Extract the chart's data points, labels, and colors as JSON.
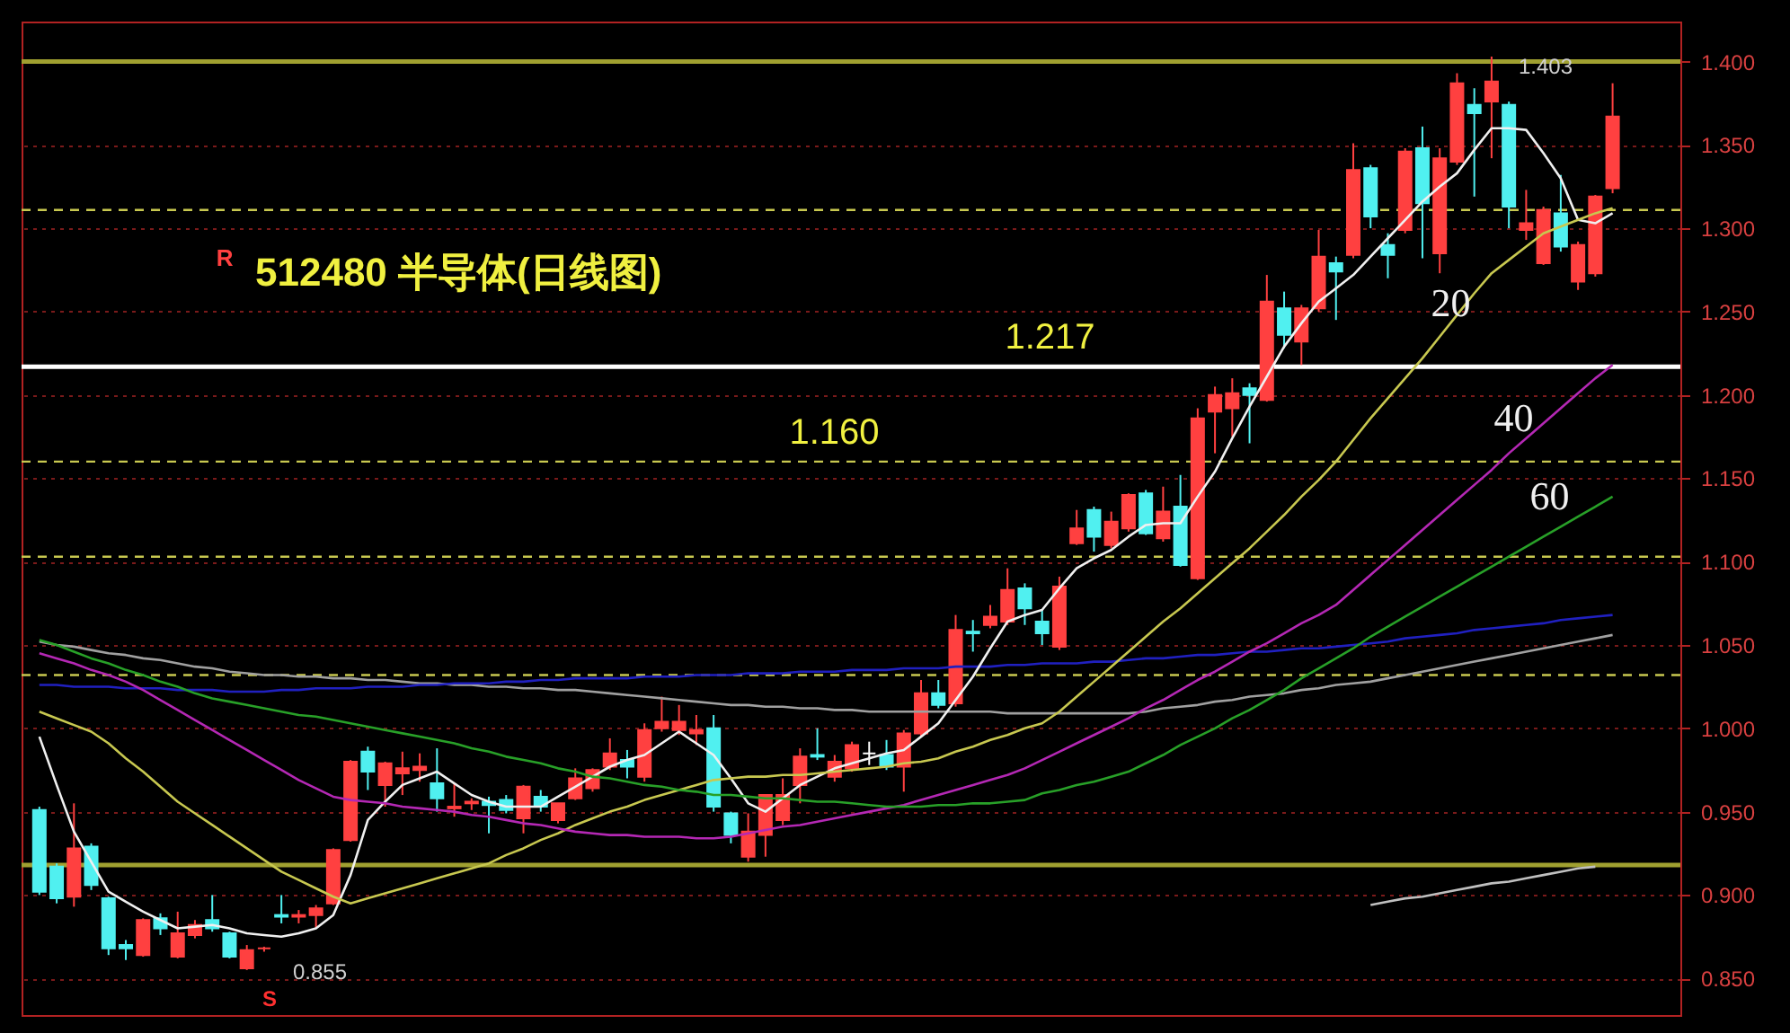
{
  "chart_data": {
    "type": "candlestick",
    "title": "512480 半导体(日线图)",
    "categories": [
      null,
      null,
      null,
      null,
      null,
      null,
      null,
      null,
      null,
      null,
      null,
      null,
      null,
      null,
      null,
      null,
      null,
      null,
      null,
      null,
      null,
      null,
      null,
      null,
      null,
      null,
      null,
      null,
      null,
      null,
      null,
      null,
      null,
      null,
      null,
      null,
      null,
      null,
      null,
      null,
      null,
      null,
      null,
      null,
      null,
      null,
      null,
      null,
      null,
      null,
      null,
      null,
      null,
      null,
      null,
      null,
      null,
      null,
      null,
      null,
      null,
      null,
      null,
      null,
      null,
      null,
      null,
      null,
      null,
      null,
      null,
      null,
      null,
      null,
      null,
      null,
      null,
      null,
      null,
      null,
      null,
      null,
      null,
      null,
      null,
      null,
      null,
      null,
      null,
      null,
      null,
      null
    ],
    "ohlc": [
      [
        0.951,
        0.953,
        0.9,
        0.902
      ],
      [
        0.917,
        0.919,
        0.895,
        0.898
      ],
      [
        0.899,
        0.955,
        0.893,
        0.928
      ],
      [
        0.929,
        0.931,
        0.903,
        0.906
      ],
      [
        0.898,
        0.899,
        0.864,
        0.868
      ],
      [
        0.87,
        0.873,
        0.861,
        0.868
      ],
      [
        0.864,
        0.886,
        0.863,
        0.885
      ],
      [
        0.886,
        0.889,
        0.876,
        0.88
      ],
      [
        0.863,
        0.89,
        0.862,
        0.877
      ],
      [
        0.876,
        0.885,
        0.874,
        0.882
      ],
      [
        0.885,
        0.9,
        0.878,
        0.88
      ],
      [
        0.877,
        0.878,
        0.862,
        0.863
      ],
      [
        0.856,
        0.87,
        0.855,
        0.867
      ],
      [
        0.868,
        0.869,
        0.866,
        0.868
      ],
      [
        0.888,
        0.9,
        0.883,
        0.887
      ],
      [
        0.887,
        0.891,
        0.883,
        0.888
      ],
      [
        0.888,
        0.894,
        0.88,
        0.892
      ],
      [
        0.895,
        0.928,
        0.894,
        0.927
      ],
      [
        0.933,
        0.981,
        0.932,
        0.98
      ],
      [
        0.986,
        0.989,
        0.963,
        0.974
      ],
      [
        0.966,
        0.98,
        0.953,
        0.979
      ],
      [
        0.973,
        0.986,
        0.96,
        0.976
      ],
      [
        0.975,
        0.985,
        0.968,
        0.977
      ],
      [
        0.967,
        0.988,
        0.95,
        0.958
      ],
      [
        0.952,
        0.967,
        0.947,
        0.953
      ],
      [
        0.955,
        0.958,
        0.951,
        0.956
      ],
      [
        0.956,
        0.959,
        0.937,
        0.954
      ],
      [
        0.957,
        0.96,
        0.949,
        0.951
      ],
      [
        0.946,
        0.966,
        0.937,
        0.965
      ],
      [
        0.959,
        0.963,
        0.95,
        0.953
      ],
      [
        0.945,
        0.955,
        0.943,
        0.955
      ],
      [
        0.958,
        0.976,
        0.957,
        0.97
      ],
      [
        0.964,
        0.976,
        0.962,
        0.975
      ],
      [
        0.977,
        0.994,
        0.975,
        0.985
      ],
      [
        0.981,
        0.987,
        0.97,
        0.977
      ],
      [
        0.971,
        1.003,
        0.968,
        0.999
      ],
      [
        1.0,
        1.019,
        0.998,
        1.004
      ],
      [
        0.999,
        1.014,
        0.996,
        1.004
      ],
      [
        0.997,
        1.008,
        0.99,
        0.999
      ],
      [
        1.0,
        1.008,
        0.95,
        0.953
      ],
      [
        0.949,
        0.95,
        0.931,
        0.936
      ],
      [
        0.923,
        0.949,
        0.92,
        0.938
      ],
      [
        0.936,
        0.96,
        0.923,
        0.96
      ],
      [
        0.945,
        0.97,
        0.942,
        0.96
      ],
      [
        0.966,
        0.988,
        0.955,
        0.983
      ],
      [
        0.984,
        1.0,
        0.981,
        0.983
      ],
      [
        0.971,
        0.984,
        0.968,
        0.98
      ],
      [
        0.976,
        0.992,
        0.974,
        0.99
      ],
      [
        0.985,
        0.992,
        0.978,
        0.985
      ],
      [
        0.984,
        0.993,
        0.975,
        0.977
      ],
      [
        0.977,
        0.999,
        0.962,
        0.997
      ],
      [
        0.997,
        1.029,
        0.995,
        1.021
      ],
      [
        1.021,
        1.029,
        1.012,
        1.014
      ],
      [
        1.015,
        1.068,
        1.013,
        1.059
      ],
      [
        1.058,
        1.065,
        1.046,
        1.057
      ],
      [
        1.062,
        1.074,
        1.06,
        1.067
      ],
      [
        1.064,
        1.096,
        1.062,
        1.083
      ],
      [
        1.084,
        1.087,
        1.062,
        1.072
      ],
      [
        1.064,
        1.071,
        1.05,
        1.057
      ],
      [
        1.049,
        1.091,
        1.047,
        1.085
      ],
      [
        1.111,
        1.131,
        1.11,
        1.12
      ],
      [
        1.131,
        1.133,
        1.106,
        1.115
      ],
      [
        1.11,
        1.13,
        1.108,
        1.124
      ],
      [
        1.12,
        1.141,
        1.118,
        1.14
      ],
      [
        1.141,
        1.143,
        1.116,
        1.117
      ],
      [
        1.114,
        1.145,
        1.112,
        1.13
      ],
      [
        1.133,
        1.152,
        1.097,
        1.098
      ],
      [
        1.09,
        1.192,
        1.089,
        1.186
      ],
      [
        1.19,
        1.205,
        1.165,
        1.2
      ],
      [
        1.192,
        1.21,
        1.175,
        1.201
      ],
      [
        1.204,
        1.207,
        1.171,
        1.2
      ],
      [
        1.197,
        1.272,
        1.196,
        1.256
      ],
      [
        1.252,
        1.262,
        1.228,
        1.236
      ],
      [
        1.232,
        1.254,
        1.218,
        1.252
      ],
      [
        1.252,
        1.299,
        1.25,
        1.283
      ],
      [
        1.279,
        1.283,
        1.245,
        1.274
      ],
      [
        1.284,
        1.351,
        1.282,
        1.335
      ],
      [
        1.336,
        1.338,
        1.3,
        1.307
      ],
      [
        1.29,
        1.297,
        1.27,
        1.284
      ],
      [
        1.299,
        1.348,
        1.297,
        1.346
      ],
      [
        1.348,
        1.361,
        1.282,
        1.315
      ],
      [
        1.285,
        1.348,
        1.273,
        1.342
      ],
      [
        1.34,
        1.393,
        1.338,
        1.387
      ],
      [
        1.374,
        1.384,
        1.319,
        1.369
      ],
      [
        1.376,
        1.403,
        1.342,
        1.388
      ],
      [
        1.374,
        1.376,
        1.3,
        1.313
      ],
      [
        1.299,
        1.323,
        1.293,
        1.303
      ],
      [
        1.279,
        1.313,
        1.278,
        1.311
      ],
      [
        1.309,
        1.332,
        1.286,
        1.289
      ],
      [
        1.268,
        1.292,
        1.263,
        1.29
      ],
      [
        1.273,
        1.32,
        1.271,
        1.319
      ],
      [
        1.324,
        1.387,
        1.321,
        1.367
      ]
    ],
    "colors": [
      "#50f0f0",
      "#50f0f0",
      "#ff4040",
      "#50f0f0",
      "#50f0f0",
      "#50f0f0",
      "#ff4040",
      "#50f0f0",
      "#ff4040",
      "#ff4040",
      "#50f0f0",
      "#50f0f0",
      "#ff4040",
      "#ff4040",
      "#50f0f0",
      "#ff4040",
      "#ff4040",
      "#ff4040",
      "#ff4040",
      "#50f0f0",
      "#ff4040",
      "#ff4040",
      "#ff4040",
      "#50f0f0",
      "#ff4040",
      "#ff4040",
      "#50f0f0",
      "#50f0f0",
      "#ff4040",
      "#50f0f0",
      "#ff4040",
      "#ff4040",
      "#ff4040",
      "#ff4040",
      "#50f0f0",
      "#ff4040",
      "#ff4040",
      "#ff4040",
      "#ff4040",
      "#50f0f0",
      "#50f0f0",
      "#ff4040",
      "#ff4040",
      "#ff4040",
      "#ff4040",
      "#50f0f0",
      "#ff4040",
      "#ff4040",
      "#ffffff",
      "#50f0f0",
      "#ff4040",
      "#ff4040",
      "#50f0f0",
      "#ff4040",
      "#50f0f0",
      "#ff4040",
      "#ff4040",
      "#50f0f0",
      "#50f0f0",
      "#ff4040",
      "#ff4040",
      "#50f0f0",
      "#ff4040",
      "#ff4040",
      "#50f0f0",
      "#ff4040",
      "#50f0f0",
      "#ff4040",
      "#ff4040",
      "#ff4040",
      "#50f0f0",
      "#ff4040",
      "#50f0f0",
      "#ff4040",
      "#ff4040",
      "#50f0f0",
      "#ff4040",
      "#50f0f0",
      "#50f0f0",
      "#ff4040",
      "#50f0f0",
      "#ff4040",
      "#ff4040",
      "#50f0f0",
      "#ff4040",
      "#50f0f0",
      "#ff4040",
      "#ff4040",
      "#50f0f0",
      "#ff4040",
      "#ff4040",
      "#ff4040"
    ],
    "series": [
      {
        "type": "line",
        "color": "#a0a0a0",
        "values": [
          1.052,
          1.05,
          1.049,
          1.047,
          1.045,
          1.044,
          1.042,
          1.041,
          1.039,
          1.037,
          1.036,
          1.034,
          1.033,
          1.032,
          1.032,
          1.031,
          1.031,
          1.03,
          1.03,
          1.029,
          1.029,
          1.028,
          1.027,
          1.027,
          1.026,
          1.026,
          1.025,
          1.025,
          1.024,
          1.024,
          1.023,
          1.023,
          1.022,
          1.021,
          1.02,
          1.019,
          1.018,
          1.017,
          1.016,
          1.015,
          1.014,
          1.014,
          1.013,
          1.013,
          1.012,
          1.012,
          1.011,
          1.011,
          1.01,
          1.01,
          1.01,
          1.01,
          1.01,
          1.01,
          1.01,
          1.01,
          1.009,
          1.009,
          1.009,
          1.009,
          1.009,
          1.009,
          1.009,
          1.009,
          1.01,
          1.012,
          1.013,
          1.014,
          1.016,
          1.017,
          1.019,
          1.02,
          1.021,
          1.023,
          1.024,
          1.026,
          1.027,
          1.028,
          1.03,
          1.032,
          1.034,
          1.036,
          1.038,
          1.04,
          1.042,
          1.044,
          1.046,
          1.048,
          1.05,
          1.052,
          1.054,
          1.056
        ]
      },
      {
        "type": "line",
        "color": "#2020c0",
        "values": [
          1.026,
          1.026,
          1.025,
          1.025,
          1.025,
          1.024,
          1.024,
          1.024,
          1.023,
          1.023,
          1.023,
          1.022,
          1.022,
          1.022,
          1.023,
          1.023,
          1.024,
          1.024,
          1.024,
          1.025,
          1.025,
          1.025,
          1.026,
          1.026,
          1.027,
          1.027,
          1.027,
          1.028,
          1.028,
          1.029,
          1.029,
          1.03,
          1.03,
          1.03,
          1.03,
          1.031,
          1.031,
          1.031,
          1.032,
          1.032,
          1.032,
          1.033,
          1.033,
          1.033,
          1.034,
          1.034,
          1.034,
          1.035,
          1.035,
          1.035,
          1.036,
          1.036,
          1.036,
          1.037,
          1.037,
          1.037,
          1.038,
          1.038,
          1.039,
          1.039,
          1.039,
          1.04,
          1.04,
          1.041,
          1.042,
          1.042,
          1.043,
          1.044,
          1.044,
          1.045,
          1.046,
          1.046,
          1.047,
          1.048,
          1.048,
          1.049,
          1.05,
          1.051,
          1.052,
          1.054,
          1.055,
          1.056,
          1.057,
          1.059,
          1.06,
          1.061,
          1.062,
          1.063,
          1.065,
          1.066,
          1.067,
          1.068
        ]
      },
      {
        "type": "line",
        "color": "#c0c0c0",
        "values": [
          null,
          null,
          null,
          null,
          null,
          null,
          null,
          null,
          null,
          null,
          null,
          null,
          null,
          null,
          null,
          null,
          null,
          null,
          null,
          null,
          null,
          null,
          null,
          null,
          null,
          null,
          null,
          null,
          null,
          null,
          null,
          null,
          null,
          null,
          null,
          null,
          null,
          null,
          null,
          null,
          null,
          null,
          null,
          null,
          null,
          null,
          null,
          null,
          null,
          null,
          null,
          null,
          null,
          null,
          null,
          null,
          null,
          null,
          null,
          null,
          null,
          null,
          null,
          null,
          null,
          null,
          null,
          null,
          null,
          null,
          null,
          null,
          null,
          null,
          null,
          null,
          null,
          0.894,
          0.896,
          0.898,
          0.899,
          0.901,
          0.903,
          0.905,
          0.907,
          0.908,
          0.91,
          0.912,
          0.914,
          0.916,
          0.917,
          null
        ]
      },
      {
        "type": "line",
        "color": "#f0f0f0",
        "values": [
          0.995,
          0.966,
          0.938,
          0.92,
          0.902,
          0.896,
          0.89,
          0.885,
          0.88,
          0.881,
          0.882,
          0.88,
          0.877,
          0.876,
          0.875,
          0.877,
          0.88,
          0.888,
          0.912,
          0.945,
          0.956,
          0.966,
          0.97,
          0.974,
          0.967,
          0.96,
          0.956,
          0.953,
          0.953,
          0.953,
          0.959,
          0.965,
          0.971,
          0.977,
          0.981,
          0.984,
          0.991,
          0.998,
          0.991,
          0.984,
          0.97,
          0.955,
          0.95,
          0.958,
          0.966,
          0.971,
          0.976,
          0.979,
          0.982,
          0.985,
          0.987,
          0.995,
          1.003,
          1.017,
          1.031,
          1.048,
          1.064,
          1.068,
          1.071,
          1.084,
          1.096,
          1.102,
          1.107,
          1.115,
          1.122,
          1.123,
          1.123,
          1.139,
          1.154,
          1.174,
          1.193,
          1.211,
          1.229,
          1.243,
          1.256,
          1.264,
          1.272,
          1.283,
          1.294,
          1.305,
          1.316,
          1.325,
          1.333,
          1.347,
          1.36,
          1.36,
          1.359,
          1.345,
          1.33,
          1.305,
          1.303,
          1.309
        ]
      },
      {
        "type": "line",
        "name": "20",
        "color": "#c8c850",
        "values": [
          1.01,
          1.006,
          1.002,
          0.998,
          0.991,
          0.982,
          0.974,
          0.965,
          0.956,
          0.949,
          0.942,
          0.935,
          0.928,
          0.921,
          0.914,
          0.909,
          0.904,
          0.899,
          0.895,
          0.898,
          0.901,
          0.904,
          0.907,
          0.91,
          0.913,
          0.916,
          0.919,
          0.924,
          0.928,
          0.933,
          0.937,
          0.942,
          0.946,
          0.95,
          0.953,
          0.957,
          0.96,
          0.963,
          0.966,
          0.969,
          0.97,
          0.971,
          0.971,
          0.972,
          0.972,
          0.973,
          0.974,
          0.975,
          0.976,
          0.977,
          0.979,
          0.98,
          0.982,
          0.986,
          0.989,
          0.993,
          0.996,
          1.0,
          1.003,
          1.01,
          1.019,
          1.028,
          1.037,
          1.046,
          1.055,
          1.064,
          1.072,
          1.081,
          1.09,
          1.099,
          1.108,
          1.118,
          1.128,
          1.139,
          1.149,
          1.16,
          1.173,
          1.186,
          1.198,
          1.21,
          1.222,
          1.235,
          1.248,
          1.261,
          1.273,
          1.281,
          1.289,
          1.297,
          1.301,
          1.305,
          1.309,
          1.312
        ]
      },
      {
        "type": "line",
        "name": "40",
        "color": "#b428b4",
        "values": [
          1.045,
          1.042,
          1.039,
          1.035,
          1.032,
          1.028,
          1.023,
          1.017,
          1.011,
          1.005,
          0.999,
          0.993,
          0.987,
          0.981,
          0.975,
          0.969,
          0.964,
          0.959,
          0.957,
          0.956,
          0.955,
          0.953,
          0.952,
          0.951,
          0.95,
          0.948,
          0.947,
          0.945,
          0.943,
          0.942,
          0.94,
          0.938,
          0.937,
          0.936,
          0.936,
          0.935,
          0.935,
          0.935,
          0.934,
          0.934,
          0.935,
          0.937,
          0.939,
          0.941,
          0.942,
          0.944,
          0.946,
          0.948,
          0.95,
          0.952,
          0.954,
          0.957,
          0.96,
          0.963,
          0.966,
          0.969,
          0.972,
          0.976,
          0.981,
          0.986,
          0.991,
          0.996,
          1.001,
          1.006,
          1.012,
          1.017,
          1.023,
          1.029,
          1.034,
          1.04,
          1.046,
          1.051,
          1.057,
          1.063,
          1.068,
          1.074,
          1.083,
          1.092,
          1.101,
          1.11,
          1.119,
          1.128,
          1.137,
          1.146,
          1.155,
          1.165,
          1.174,
          1.183,
          1.192,
          1.201,
          1.21,
          1.218
        ]
      },
      {
        "type": "line",
        "name": "60",
        "color": "#28a028",
        "values": [
          1.053,
          1.05,
          1.046,
          1.042,
          1.039,
          1.035,
          1.032,
          1.028,
          1.025,
          1.021,
          1.018,
          1.016,
          1.014,
          1.012,
          1.01,
          1.008,
          1.007,
          1.005,
          1.003,
          1.001,
          0.999,
          0.997,
          0.995,
          0.993,
          0.991,
          0.988,
          0.986,
          0.983,
          0.981,
          0.979,
          0.976,
          0.974,
          0.971,
          0.97,
          0.968,
          0.966,
          0.965,
          0.963,
          0.962,
          0.96,
          0.96,
          0.959,
          0.958,
          0.958,
          0.957,
          0.956,
          0.956,
          0.955,
          0.954,
          0.953,
          0.953,
          0.953,
          0.954,
          0.954,
          0.955,
          0.955,
          0.956,
          0.957,
          0.961,
          0.963,
          0.966,
          0.968,
          0.971,
          0.974,
          0.979,
          0.984,
          0.99,
          0.995,
          1.0,
          1.006,
          1.011,
          1.017,
          1.023,
          1.03,
          1.036,
          1.042,
          1.048,
          1.055,
          1.061,
          1.067,
          1.073,
          1.079,
          1.085,
          1.091,
          1.097,
          1.103,
          1.109,
          1.115,
          1.121,
          1.127,
          1.133,
          1.139
        ]
      }
    ],
    "ylim": [
      0.828,
      1.424
    ],
    "yticks": [
      {
        "value": 0.85,
        "label": "0.850"
      },
      {
        "value": 0.9,
        "label": "0.900"
      },
      {
        "value": 0.95,
        "label": "0.950"
      },
      {
        "value": 1.0,
        "label": "1.000"
      },
      {
        "value": 1.05,
        "label": "1.050"
      },
      {
        "value": 1.1,
        "label": "1.100"
      },
      {
        "value": 1.15,
        "label": "1.150"
      },
      {
        "value": 1.2,
        "label": "1.200"
      },
      {
        "value": 1.25,
        "label": "1.250"
      },
      {
        "value": 1.3,
        "label": "1.300"
      },
      {
        "value": 1.35,
        "label": "1.350"
      },
      {
        "value": 1.4,
        "label": "1.400"
      }
    ],
    "ref_lines": [
      {
        "axis": "y",
        "value": 1.217,
        "label": "1.217",
        "color": "#ffffff",
        "line_style": "solid"
      },
      {
        "axis": "y",
        "value": 1.16,
        "label": "1.160",
        "color": "#c8c850",
        "line_style": "dashed"
      },
      {
        "axis": "y",
        "value": 1.4,
        "color": "#a0a030",
        "line_style": "solid"
      },
      {
        "axis": "y",
        "value": 1.311,
        "color": "#c8c850",
        "line_style": "dashed"
      },
      {
        "axis": "y",
        "value": 1.103,
        "color": "#c8c850",
        "line_style": "dashed"
      },
      {
        "axis": "y",
        "value": 1.032,
        "color": "#c8c850",
        "line_style": "dashed"
      },
      {
        "axis": "y",
        "value": 0.918,
        "color": "#a0a030",
        "line_style": "solid"
      }
    ],
    "annotations": [
      "R",
      "S",
      "1.403",
      "0.855"
    ],
    "grid": "y",
    "tick_labels": "y"
  }
}
